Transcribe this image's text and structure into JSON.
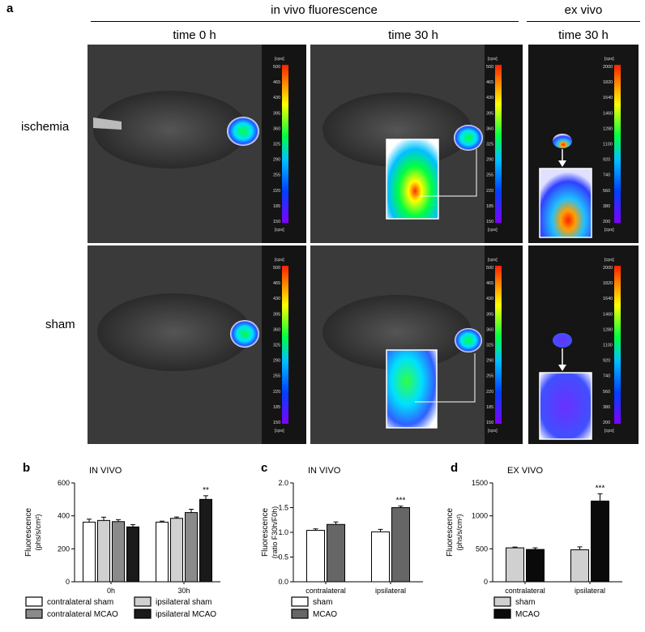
{
  "panel_a": {
    "letter": "a",
    "group_invivo": "in vivo fluorescence",
    "group_exvivo": "ex vivo",
    "col_headers": [
      "time 0 h",
      "time 30 h",
      "time 30 h"
    ],
    "row_labels": [
      "ischemia",
      "sham"
    ],
    "scale_invivo": {
      "unit": "[cps]",
      "ticks": [
        "500",
        "465",
        "430",
        "395",
        "360",
        "325",
        "290",
        "255",
        "220",
        "185",
        "150"
      ]
    },
    "scale_exvivo": {
      "unit": "[cps]",
      "ticks": [
        "2000",
        "1820",
        "1640",
        "1460",
        "1280",
        "1100",
        "920",
        "740",
        "560",
        "380",
        "200"
      ]
    }
  },
  "chart_data": [
    {
      "letter": "b",
      "type": "bar",
      "title": "IN VIVO",
      "ylabel": "Fluorescence",
      "ylabel2": "(phs/s/cm²)",
      "ylim": [
        0,
        600
      ],
      "yticks": [
        "0",
        "200",
        "400",
        "600"
      ],
      "categories": [
        "0h",
        "30h"
      ],
      "series": [
        {
          "name": "contralateral sham",
          "color": "#ffffff",
          "values": [
            362,
            362
          ],
          "err": [
            18,
            6
          ]
        },
        {
          "name": "ipsilateral sham",
          "color": "#d0d0d0",
          "values": [
            372,
            385
          ],
          "err": [
            20,
            8
          ]
        },
        {
          "name": "contralateral MCAO",
          "color": "#8a8a8a",
          "values": [
            365,
            420
          ],
          "err": [
            12,
            20
          ]
        },
        {
          "name": "ipsilateral MCAO",
          "color": "#1a1a1a",
          "values": [
            333,
            500
          ],
          "err": [
            14,
            22
          ]
        }
      ],
      "annotation": "**",
      "legend": "bottom"
    },
    {
      "letter": "c",
      "type": "bar",
      "title": "IN VIVO",
      "ylabel": "Fluorescence",
      "ylabel2": "(ratio F30h/F0h)",
      "ylim": [
        0,
        2.0
      ],
      "yticks": [
        "0.0",
        "0.5",
        "1.0",
        "1.5",
        "2.0"
      ],
      "categories": [
        "contralateral",
        "ipsilateral"
      ],
      "series": [
        {
          "name": "sham",
          "color": "#ffffff",
          "values": [
            1.04,
            1.01
          ],
          "err": [
            0.03,
            0.05
          ]
        },
        {
          "name": "MCAO",
          "color": "#666666",
          "values": [
            1.16,
            1.5
          ],
          "err": [
            0.05,
            0.03
          ]
        }
      ],
      "annotation": "***",
      "legend": "bottom"
    },
    {
      "letter": "d",
      "type": "bar",
      "title": "EX VIVO",
      "ylabel": "Fluorescence",
      "ylabel2": "(phs/s/cm²)",
      "ylim": [
        0,
        1500
      ],
      "yticks": [
        "0",
        "500",
        "1000",
        "1500"
      ],
      "categories": [
        "contralateral",
        "ipsilateral"
      ],
      "series": [
        {
          "name": "sham",
          "color": "#d0d0d0",
          "values": [
            515,
            485
          ],
          "err": [
            12,
            45
          ]
        },
        {
          "name": "MCAO",
          "color": "#0a0a0a",
          "values": [
            490,
            1225
          ],
          "err": [
            25,
            110
          ]
        }
      ],
      "annotation": "***",
      "legend": "bottom"
    }
  ]
}
